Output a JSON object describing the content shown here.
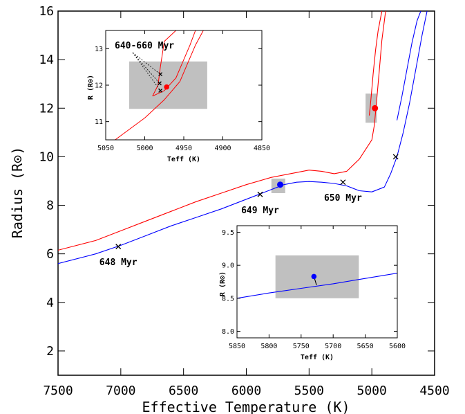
{
  "chart_data": {
    "main": {
      "type": "line",
      "xlabel": "Effective Temperature (K)",
      "ylabel": "Radius (R⊙)",
      "xlim": [
        7500,
        4500
      ],
      "ylim": [
        1,
        16
      ],
      "xticks": [
        7500,
        7000,
        6500,
        6000,
        5500,
        5000,
        4500
      ],
      "yticks": [
        2,
        4,
        6,
        8,
        10,
        12,
        14,
        16
      ],
      "colors": {
        "primary": "#ff0000",
        "secondary": "#0000ff",
        "box": "#c0c0c0"
      },
      "series": [
        {
          "color": "#ff0000",
          "points": [
            [
              7500,
              6.15
            ],
            [
              7200,
              6.55
            ],
            [
              7000,
              6.95
            ],
            [
              6800,
              7.35
            ],
            [
              6600,
              7.75
            ],
            [
              6400,
              8.15
            ],
            [
              6200,
              8.5
            ],
            [
              6000,
              8.85
            ],
            [
              5800,
              9.15
            ],
            [
              5600,
              9.35
            ],
            [
              5500,
              9.45
            ],
            [
              5400,
              9.4
            ],
            [
              5300,
              9.3
            ],
            [
              5200,
              9.4
            ],
            [
              5100,
              9.9
            ],
            [
              5000,
              10.7
            ],
            [
              4980,
              11.3
            ],
            [
              4960,
              12.4
            ],
            [
              4940,
              13.6
            ],
            [
              4920,
              14.8
            ],
            [
              4890,
              16.0
            ]
          ]
        },
        {
          "color": "#ff0000",
          "points": [
            [
              5020,
              11.7
            ],
            [
              5010,
              12.2
            ],
            [
              5000,
              12.8
            ],
            [
              4990,
              13.4
            ],
            [
              4970,
              14.4
            ],
            [
              4950,
              15.2
            ],
            [
              4920,
              16.0
            ]
          ]
        },
        {
          "color": "#0000ff",
          "points": [
            [
              7500,
              5.6
            ],
            [
              7200,
              6.0
            ],
            [
              7000,
              6.35
            ],
            [
              6800,
              6.75
            ],
            [
              6600,
              7.15
            ],
            [
              6400,
              7.5
            ],
            [
              6200,
              7.85
            ],
            [
              6000,
              8.25
            ],
            [
              5900,
              8.45
            ],
            [
              5800,
              8.65
            ],
            [
              5700,
              8.85
            ],
            [
              5600,
              8.95
            ],
            [
              5500,
              8.98
            ],
            [
              5400,
              8.95
            ],
            [
              5300,
              8.9
            ],
            [
              5200,
              8.8
            ],
            [
              5100,
              8.6
            ],
            [
              5000,
              8.55
            ],
            [
              4900,
              8.75
            ],
            [
              4850,
              9.3
            ],
            [
              4800,
              10.0
            ],
            [
              4750,
              11.0
            ],
            [
              4700,
              12.2
            ],
            [
              4650,
              13.6
            ],
            [
              4600,
              15.0
            ],
            [
              4560,
              16.0
            ]
          ]
        },
        {
          "color": "#0000ff",
          "points": [
            [
              4800,
              11.5
            ],
            [
              4760,
              12.5
            ],
            [
              4720,
              13.6
            ],
            [
              4680,
              14.7
            ],
            [
              4640,
              15.6
            ],
            [
              4610,
              16.0
            ]
          ]
        }
      ],
      "error_boxes": [
        {
          "x": [
            5050,
            4960
          ],
          "y": [
            11.4,
            12.6
          ]
        },
        {
          "x": [
            5800,
            5690
          ],
          "y": [
            8.5,
            9.1
          ]
        }
      ],
      "stars": [
        {
          "x": 4975,
          "y": 12.0,
          "color": "#ff0000"
        },
        {
          "x": 5730,
          "y": 8.85,
          "color": "#0000ff"
        }
      ],
      "markers": [
        {
          "x": 7020,
          "y": 6.3,
          "label": "648 Myr"
        },
        {
          "x": 5890,
          "y": 8.45,
          "label": "649 Myr"
        },
        {
          "x": 5230,
          "y": 8.95,
          "label": "650 Myr"
        },
        {
          "x": 4810,
          "y": 10.0,
          "label": ""
        }
      ]
    },
    "inset_top": {
      "type": "line",
      "xlabel": "Teff (K)",
      "ylabel": "R (R⊙)",
      "xlim": [
        5050,
        4850
      ],
      "ylim": [
        10.5,
        13.5
      ],
      "xticks": [
        5050,
        5000,
        4950,
        4900,
        4850
      ],
      "yticks": [
        11,
        12,
        13
      ],
      "annotation": "640-660 Myr",
      "box": {
        "x": [
          5020,
          4920
        ],
        "y": [
          11.35,
          12.65
        ]
      },
      "star": {
        "x": 4972,
        "y": 11.95
      },
      "crosses": [
        [
          4980,
          12.3
        ],
        [
          4981,
          12.05
        ],
        [
          4980,
          11.85
        ]
      ],
      "series": [
        {
          "color": "#ff0000",
          "points": [
            [
              5038,
              10.5
            ],
            [
              5000,
              11.1
            ],
            [
              4975,
              11.6
            ],
            [
              4955,
              12.1
            ],
            [
              4945,
              12.6
            ],
            [
              4935,
              13.1
            ],
            [
              4925,
              13.5
            ]
          ]
        },
        {
          "color": "#ff0000",
          "points": [
            [
              4990,
              11.7
            ],
            [
              4975,
              11.85
            ],
            [
              4960,
              12.2
            ],
            [
              4952,
              12.6
            ],
            [
              4942,
              13.1
            ],
            [
              4935,
              13.5
            ]
          ]
        },
        {
          "color": "#ff0000",
          "points": [
            [
              4990,
              11.7
            ],
            [
              4983,
              12.0
            ],
            [
              4980,
              12.5
            ],
            [
              4975,
              13.2
            ],
            [
              4960,
              13.5
            ]
          ]
        }
      ]
    },
    "inset_bottom": {
      "type": "line",
      "xlabel": "Teff (K)",
      "ylabel": "R (R⊙)",
      "xlim": [
        5850,
        5600
      ],
      "ylim": [
        7.9,
        9.6
      ],
      "xticks": [
        5850,
        5800,
        5750,
        5700,
        5650,
        5600
      ],
      "yticks": [
        8.0,
        8.5,
        9.0,
        9.5
      ],
      "box": {
        "x": [
          5790,
          5660
        ],
        "y": [
          8.5,
          9.15
        ]
      },
      "star": {
        "x": 5730,
        "y": 8.83
      },
      "series": [
        {
          "color": "#0000ff",
          "points": [
            [
              5850,
              8.5
            ],
            [
              5800,
              8.58
            ],
            [
              5750,
              8.65
            ],
            [
              5700,
              8.72
            ],
            [
              5650,
              8.8
            ],
            [
              5600,
              8.88
            ]
          ]
        },
        {
          "color": "#000000",
          "points": [
            [
              5730,
              8.83
            ],
            [
              5726,
              8.7
            ]
          ]
        }
      ]
    }
  }
}
